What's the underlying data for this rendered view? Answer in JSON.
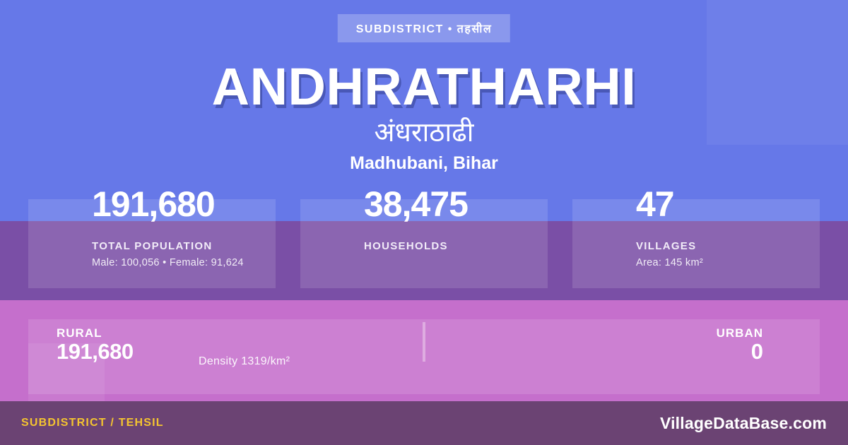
{
  "badge": {
    "label": "SUBDISTRICT • तहसील"
  },
  "header": {
    "title": "ANDHRATHARHI",
    "subtitle_hindi": "अंधराठाढी",
    "location": "Madhubani, Bihar"
  },
  "stats": [
    {
      "value": "191,680",
      "label": "TOTAL POPULATION",
      "detail": "Male: 100,056 • Female: 91,624"
    },
    {
      "value": "38,475",
      "label": "HOUSEHOLDS",
      "detail": ""
    },
    {
      "value": "47",
      "label": "VILLAGES",
      "detail": "Area: 145 km²"
    }
  ],
  "breakdown": {
    "rural_label": "RURAL",
    "rural_value": "191,680",
    "density": "Density 1319/km²",
    "urban_label": "URBAN",
    "urban_value": "0"
  },
  "footer": {
    "type_label": "SUBDISTRICT / TEHSIL",
    "brand": "VillageDataBase.com"
  },
  "colors": {
    "background": "#6678e8",
    "stats_band": "#7a4fa6",
    "rural_band": "#c56fcc",
    "footer_bg": "#6b4373",
    "accent_yellow": "#f4c430",
    "text": "#ffffff"
  }
}
